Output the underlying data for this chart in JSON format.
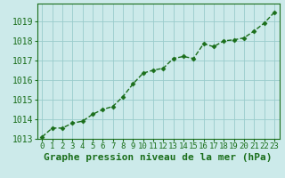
{
  "x": [
    0,
    1,
    2,
    3,
    4,
    5,
    6,
    7,
    8,
    9,
    10,
    11,
    12,
    13,
    14,
    15,
    16,
    17,
    18,
    19,
    20,
    21,
    22,
    23
  ],
  "y": [
    1013.1,
    1013.55,
    1013.55,
    1013.8,
    1013.9,
    1014.25,
    1014.5,
    1014.65,
    1015.15,
    1015.8,
    1016.35,
    1016.5,
    1016.6,
    1017.1,
    1017.2,
    1017.1,
    1017.85,
    1017.7,
    1018.0,
    1018.05,
    1018.15,
    1018.5,
    1018.9,
    1019.45
  ],
  "line_color": "#1a6e1a",
  "marker": "D",
  "marker_size": 2.5,
  "bg_color": "#cceaea",
  "grid_color": "#99cccc",
  "xlabel": "Graphe pression niveau de la mer (hPa)",
  "ylim": [
    1013.0,
    1019.9
  ],
  "xlim": [
    -0.5,
    23.5
  ],
  "yticks": [
    1013,
    1014,
    1015,
    1016,
    1017,
    1018,
    1019
  ],
  "xtick_labels": [
    "0",
    "1",
    "2",
    "3",
    "4",
    "5",
    "6",
    "7",
    "8",
    "9",
    "10",
    "11",
    "12",
    "13",
    "14",
    "15",
    "16",
    "17",
    "18",
    "19",
    "20",
    "21",
    "22",
    "23"
  ],
  "line_width": 1.0,
  "font_size": 7.0,
  "xlabel_fontsize": 8.0
}
